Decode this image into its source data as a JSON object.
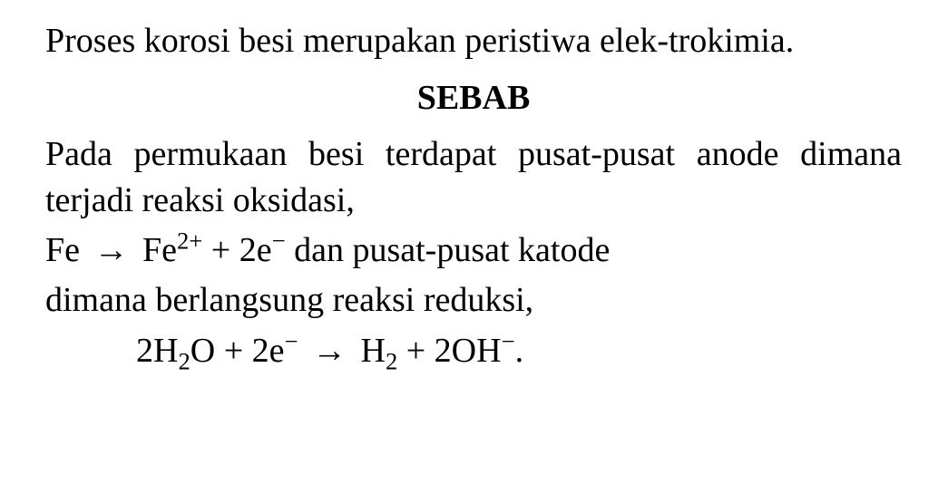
{
  "document": {
    "paragraph1": "Proses korosi besi merupakan peristiwa elek-trokimia.",
    "sebab_heading": "SEBAB",
    "paragraph2": "Pada permukaan besi terdapat pusat-pusat anode dimana terjadi reaksi oksidasi,",
    "eq1_lhs": "Fe",
    "arrow": "→",
    "eq1_rhs_fe": "Fe",
    "eq1_fe_charge": "2+",
    "eq1_plus": " + 2e",
    "eq1_e_charge": "−",
    "eq1_tail": " dan pusat-pusat katode",
    "paragraph3": "dimana berlangsung reaksi reduksi,",
    "eq2_1": "2H",
    "eq2_sub2a": "2",
    "eq2_2": "O + 2e",
    "eq2_sup_minus": "−",
    "eq2_3": " H",
    "eq2_sub2b": "2",
    "eq2_4": " + 2OH",
    "eq2_sup_minus2": "−",
    "eq2_period": "."
  },
  "style": {
    "background_color": "#ffffff",
    "text_color": "#000000",
    "font_family": "Times New Roman",
    "font_size_pt": 28,
    "heading_weight": "bold"
  }
}
